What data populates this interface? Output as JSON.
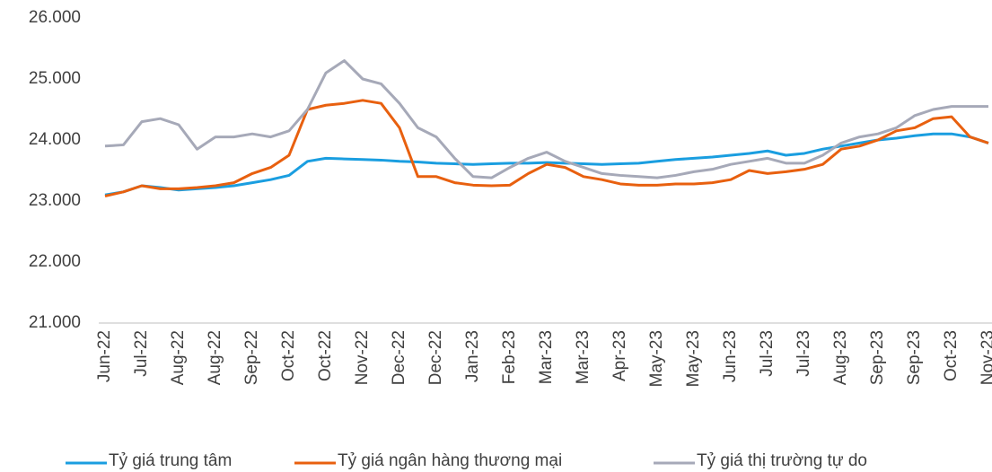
{
  "chart_data": {
    "type": "line",
    "categories": [
      "Jun-22",
      null,
      "Jul-22",
      null,
      "Aug-22",
      null,
      "Aug-22",
      null,
      "Sep-22",
      null,
      "Oct-22",
      null,
      "Oct-22",
      null,
      "Nov-22",
      null,
      "Dec-22",
      null,
      "Dec-22",
      null,
      "Jan-23",
      null,
      "Feb-23",
      null,
      "Mar-23",
      null,
      "Mar-23",
      null,
      "Apr-23",
      null,
      "May-23",
      null,
      "May-23",
      null,
      "Jun-23",
      null,
      "Jul-23",
      null,
      "Jul-23",
      null,
      "Aug-23",
      null,
      "Sep-23",
      null,
      "Sep-23",
      null,
      "Oct-23",
      null,
      "Nov-23"
    ],
    "series": [
      {
        "name": "Tỷ giá trung tâm",
        "color": "#1a9ee0",
        "values": [
          23100,
          23150,
          23250,
          23220,
          23180,
          23200,
          23220,
          23250,
          23300,
          23350,
          23420,
          23650,
          23700,
          23690,
          23680,
          23670,
          23650,
          23640,
          23620,
          23610,
          23600,
          23610,
          23620,
          23620,
          23630,
          23620,
          23610,
          23600,
          23610,
          23620,
          23650,
          23680,
          23700,
          23720,
          23750,
          23780,
          23820,
          23750,
          23780,
          23850,
          23900,
          23950,
          24000,
          24030,
          24070,
          24100,
          24100,
          24050,
          23950
        ]
      },
      {
        "name": "Tỷ giá ngân hàng thương mại",
        "color": "#e8600f",
        "values": [
          23080,
          23150,
          23250,
          23200,
          23200,
          23220,
          23250,
          23300,
          23450,
          23550,
          23750,
          24500,
          24570,
          24600,
          24650,
          24600,
          24200,
          23400,
          23400,
          23300,
          23260,
          23250,
          23260,
          23450,
          23600,
          23550,
          23400,
          23350,
          23280,
          23260,
          23260,
          23280,
          23280,
          23300,
          23350,
          23500,
          23450,
          23480,
          23520,
          23600,
          23850,
          23900,
          24000,
          24150,
          24200,
          24350,
          24380,
          24050,
          23950
        ]
      },
      {
        "name": "Tỷ giá thị trường tự do",
        "color": "#a6a9b8",
        "values": [
          23900,
          23920,
          24300,
          24350,
          24250,
          23850,
          24050,
          24050,
          24100,
          24050,
          24150,
          24500,
          25100,
          25300,
          25000,
          24920,
          24600,
          24200,
          24050,
          23700,
          23400,
          23380,
          23550,
          23700,
          23800,
          23650,
          23550,
          23450,
          23420,
          23400,
          23380,
          23420,
          23480,
          23520,
          23600,
          23650,
          23700,
          23620,
          23620,
          23750,
          23950,
          24050,
          24100,
          24200,
          24400,
          24500,
          24550,
          24550,
          24550
        ]
      }
    ],
    "ylim": [
      21000,
      26000
    ],
    "yticks": [
      {
        "value": 21000,
        "label": "21.000"
      },
      {
        "value": 22000,
        "label": "22.000"
      },
      {
        "value": 23000,
        "label": "23.000"
      },
      {
        "value": 24000,
        "label": "24.000"
      },
      {
        "value": 25000,
        "label": "25.000"
      },
      {
        "value": 26000,
        "label": "26.000"
      }
    ],
    "grid": false
  }
}
